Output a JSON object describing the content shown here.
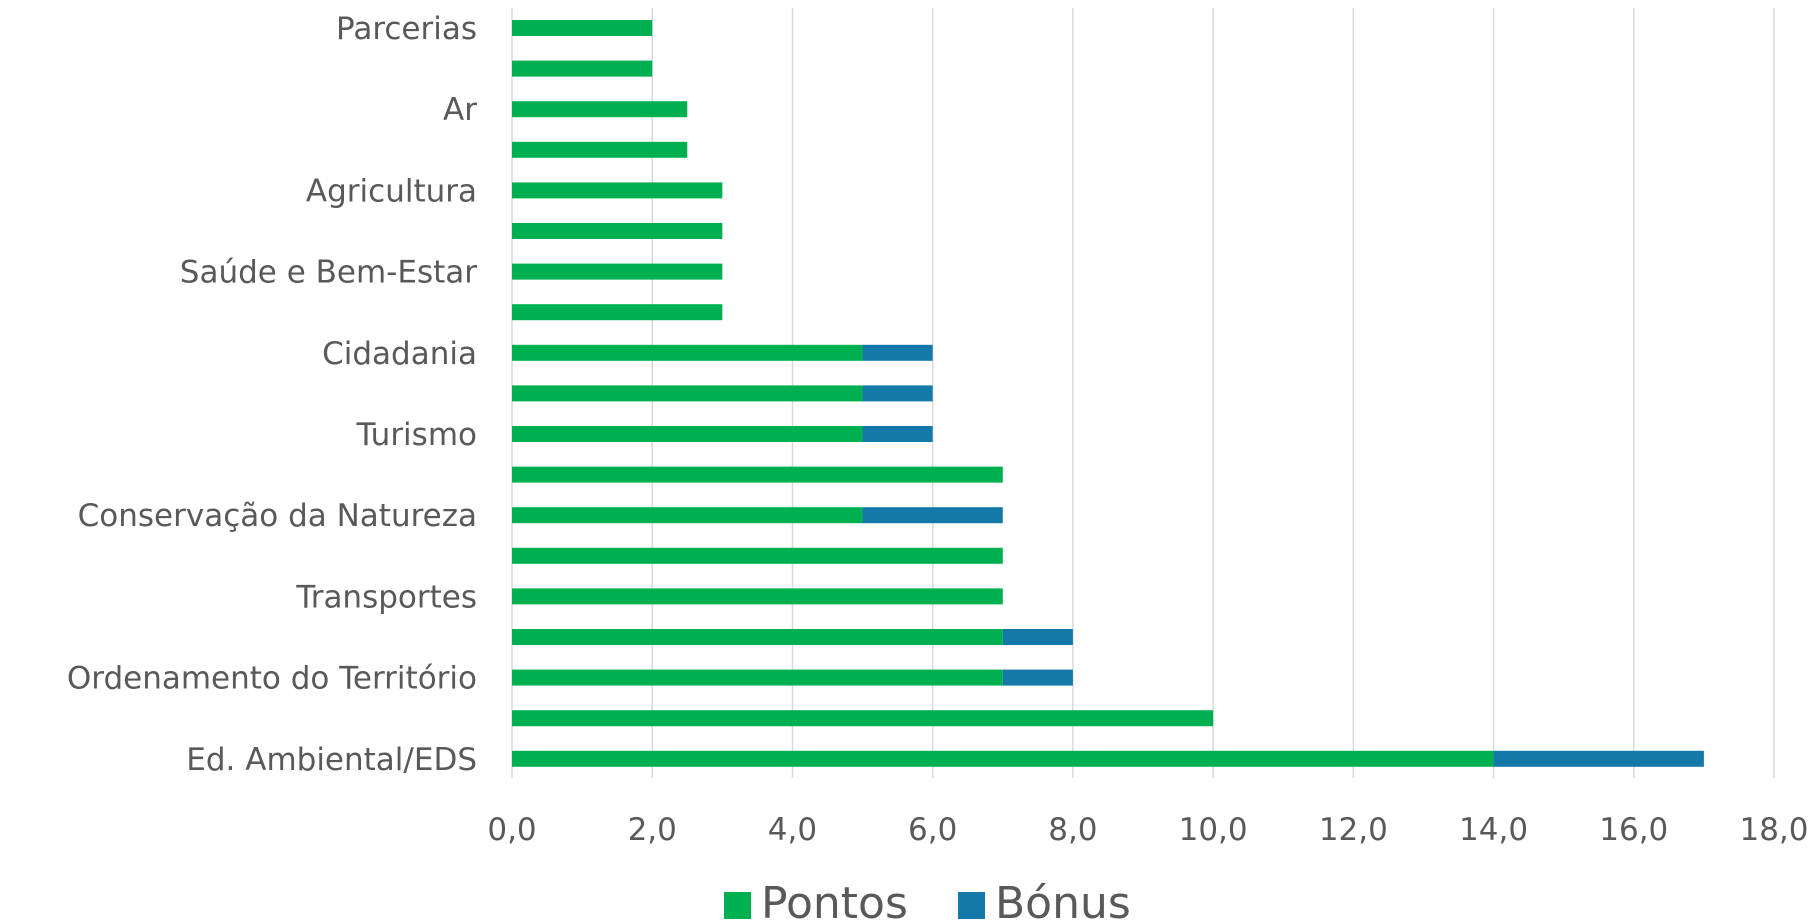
{
  "chart_data": {
    "type": "bar",
    "orientation": "horizontal",
    "stacked": true,
    "categories": [
      "Parcerias",
      "",
      "Ar",
      "",
      "Agricultura",
      "",
      "Saúde e Bem-Estar",
      "",
      "Cidadania",
      "",
      "Turismo",
      "",
      "Conservação da Natureza",
      "",
      "Transportes",
      "",
      "Ordenamento do Território",
      "",
      "Ed. Ambiental/EDS"
    ],
    "series": [
      {
        "name": "Pontos",
        "color": "#00B050",
        "values": [
          2,
          2,
          2.5,
          2.5,
          3,
          3,
          3,
          3,
          5,
          5,
          5,
          7,
          5,
          7,
          7,
          7,
          7,
          10,
          14
        ]
      },
      {
        "name": "Bónus",
        "color": "#1478A8",
        "values": [
          0,
          0,
          0,
          0,
          0,
          0,
          0,
          0,
          1,
          1,
          1,
          0,
          2,
          0,
          0,
          1,
          1,
          0,
          3
        ]
      }
    ],
    "xlim": [
      0,
      18
    ],
    "xticks": [
      "0,0",
      "2,0",
      "4,0",
      "6,0",
      "8,0",
      "10,0",
      "12,0",
      "14,0",
      "16,0",
      "18,0"
    ],
    "grid": "vertical",
    "legend_position": "bottom"
  }
}
